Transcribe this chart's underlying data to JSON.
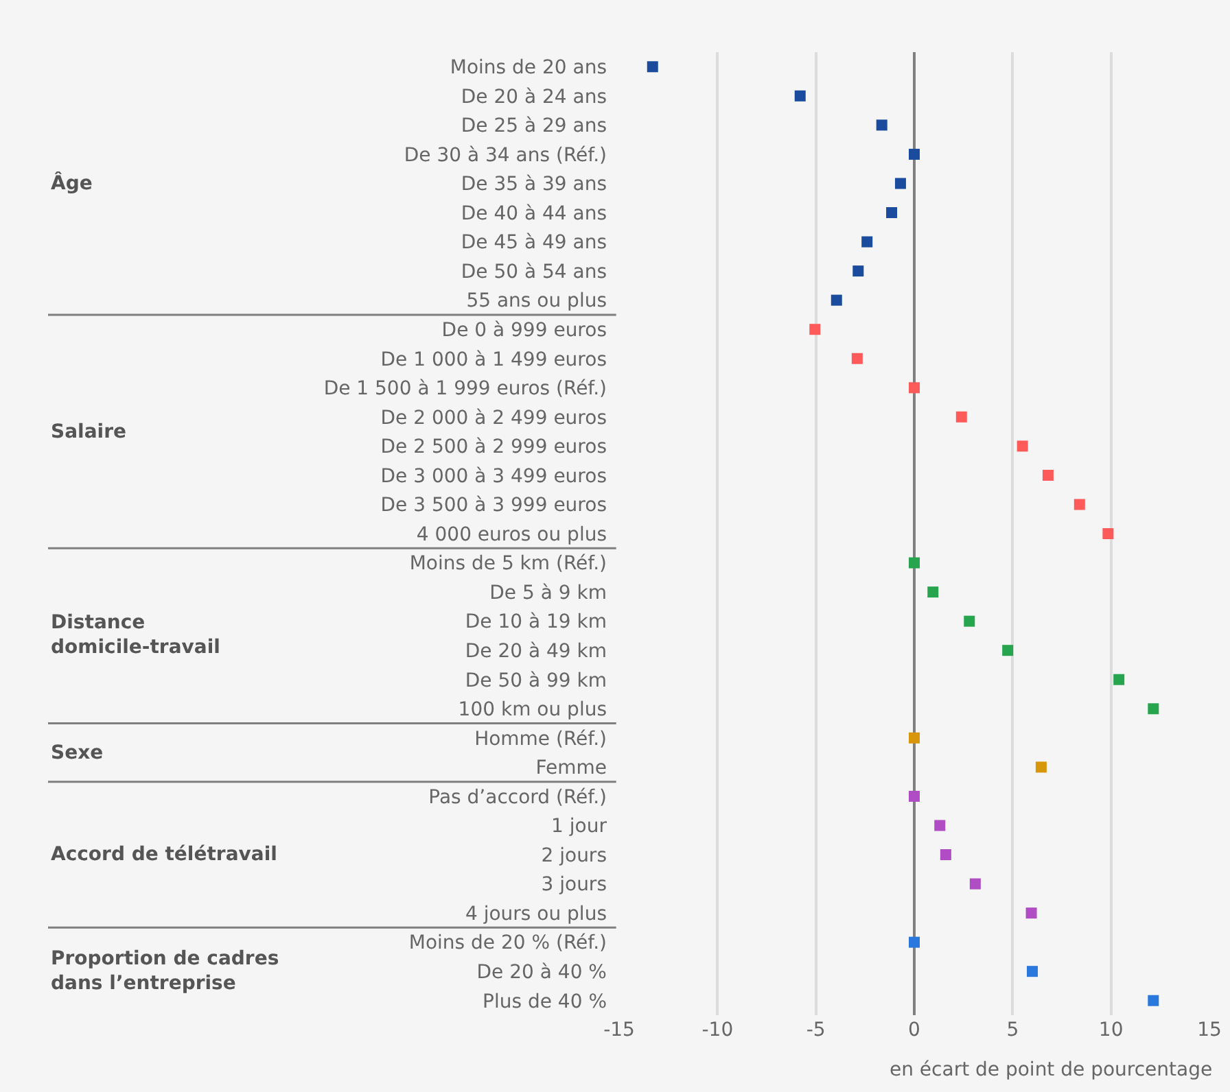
{
  "chart_data": {
    "type": "scatter",
    "orientation": "horizontal",
    "xlabel": "en écart de point de pourcentage",
    "categories": [
      "Moins de 20 ans",
      "De 20 à 24 ans",
      "De 25 à 29 ans",
      "De 30 à 34 ans (Réf.)",
      "De 35 à 39 ans",
      "De 40 à 44 ans",
      "De 45 à 49 ans",
      "De 50 à 54 ans",
      "55 ans ou plus",
      "De 0 à 999 euros",
      "De 1 000 à 1 499 euros",
      "De 1 500 à 1 999 euros (Réf.)",
      "De 2 000 à 2 499 euros",
      "De 2 500 à 2 999 euros",
      "De 3 000 à 3 499 euros",
      "De 3 500 à 3 999 euros",
      "4 000 euros ou plus",
      "Moins de 5 km (Réf.)",
      "De 5 à 9 km",
      "De 10 à 19 km",
      "De 20 à 49 km",
      "De 50 à 99 km",
      "100 km ou plus",
      "Homme (Réf.)",
      "Femme",
      "Pas d’accord (Réf.)",
      "1 jour",
      "2 jours",
      "3 jours",
      "4 jours ou plus",
      "Moins de 20 % (Réf.)",
      "De 20 à 40 %",
      "Plus de 40 %"
    ],
    "series": [
      {
        "color": "#1a4b9c",
        "values": [
          -13.3,
          -5.8,
          -1.65,
          0,
          -0.7,
          -1.15,
          -2.4,
          -2.85,
          -3.95,
          null,
          null,
          null,
          null,
          null,
          null,
          null,
          null,
          null,
          null,
          null,
          null,
          null,
          null,
          null,
          null,
          null,
          null,
          null,
          null,
          null,
          null,
          null,
          null
        ]
      },
      {
        "color": "#ff5a5a",
        "values": [
          null,
          null,
          null,
          null,
          null,
          null,
          null,
          null,
          null,
          -5.05,
          -2.9,
          0,
          2.4,
          5.5,
          6.8,
          8.4,
          9.85,
          null,
          null,
          null,
          null,
          null,
          null,
          null,
          null,
          null,
          null,
          null,
          null,
          null,
          null,
          null,
          null
        ]
      },
      {
        "color": "#27a54e",
        "values": [
          null,
          null,
          null,
          null,
          null,
          null,
          null,
          null,
          null,
          null,
          null,
          null,
          null,
          null,
          null,
          null,
          null,
          0,
          0.95,
          2.8,
          4.75,
          10.4,
          12.15,
          null,
          null,
          null,
          null,
          null,
          null,
          null,
          null,
          null,
          null
        ]
      },
      {
        "color": "#d8970a",
        "values": [
          null,
          null,
          null,
          null,
          null,
          null,
          null,
          null,
          null,
          null,
          null,
          null,
          null,
          null,
          null,
          null,
          null,
          null,
          null,
          null,
          null,
          null,
          null,
          0,
          6.45,
          null,
          null,
          null,
          null,
          null,
          null,
          null,
          null
        ]
      },
      {
        "color": "#b04cc4",
        "values": [
          null,
          null,
          null,
          null,
          null,
          null,
          null,
          null,
          null,
          null,
          null,
          null,
          null,
          null,
          null,
          null,
          null,
          null,
          null,
          null,
          null,
          null,
          null,
          null,
          null,
          0,
          1.3,
          1.6,
          3.1,
          5.95,
          null,
          null,
          null
        ]
      },
      {
        "color": "#2a78dd",
        "values": [
          null,
          null,
          null,
          null,
          null,
          null,
          null,
          null,
          null,
          null,
          null,
          null,
          null,
          null,
          null,
          null,
          null,
          null,
          null,
          null,
          null,
          null,
          null,
          null,
          null,
          null,
          null,
          null,
          null,
          null,
          0,
          6.0,
          12.15
        ]
      }
    ],
    "xlim": [
      -15,
      15
    ],
    "xticks": [
      -15,
      -10,
      -5,
      0,
      5,
      10,
      15
    ],
    "annotations": [
      "Âge",
      "Salaire",
      "Distance\ndomicile-travail",
      "Sexe",
      "Accord de télétravail",
      "Proportion de cadres\ndans l’entreprise"
    ],
    "grid": "x",
    "marker": "square"
  }
}
